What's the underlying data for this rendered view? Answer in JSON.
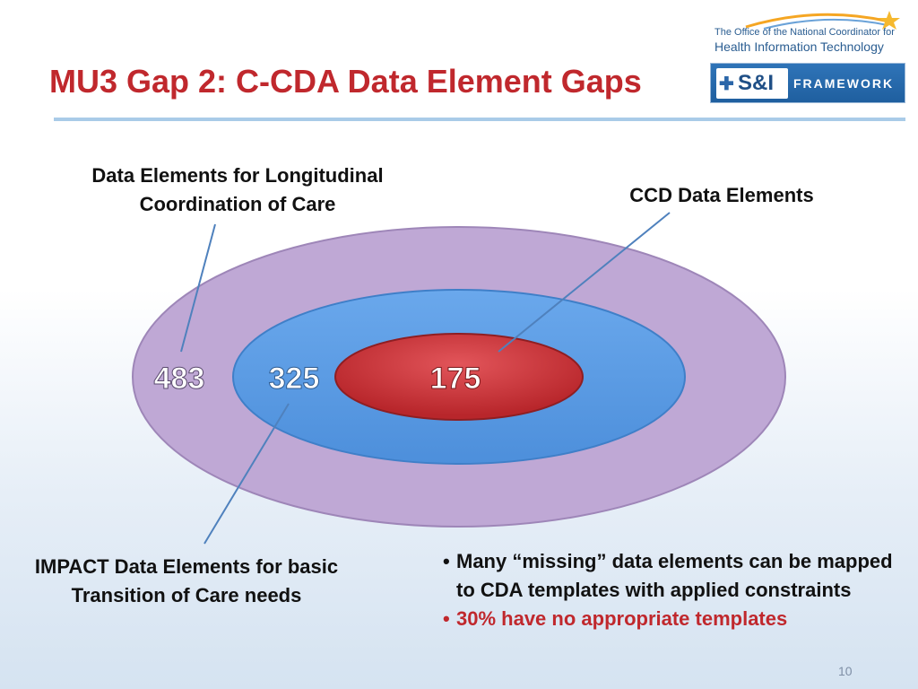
{
  "slide": {
    "title": "MU3 Gap 2: C-CDA Data Element Gaps",
    "page_number": "10"
  },
  "logos": {
    "onc_line1": "The Office of the National Coordinator for",
    "onc_line2": "Health Information Technology",
    "si_text": "S&I",
    "si_framework": "FRAMEWORK"
  },
  "diagram": {
    "outer": {
      "label": "Data Elements for Longitudinal Coordination of Care",
      "count": "483",
      "color": "#bfa8d5"
    },
    "middle": {
      "label": "IMPACT Data Elements for basic Transition of Care needs",
      "count": "325",
      "color": "#5b9be2"
    },
    "inner": {
      "label": "CCD Data Elements",
      "count": "175",
      "color": "#d2373a"
    },
    "connector_color": "#4f81bd"
  },
  "bullets": {
    "items": [
      {
        "text": "Many “missing” data elements can be mapped to CDA templates with applied constraints",
        "color": "#111111"
      },
      {
        "text": "30% have no appropriate templates",
        "color": "#c0282d"
      }
    ]
  }
}
